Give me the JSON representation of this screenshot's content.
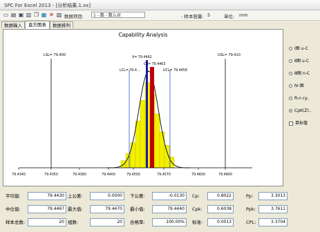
{
  "window": {
    "title": "SPC For Excel 2013 - [分析结果.1.xx]"
  },
  "toolbar": {
    "field1_label": "数据项目:",
    "field1_value": "1 - 数 - 数么对",
    "field2_label": "- 样本容量:",
    "field2_value": "5",
    "field3_label": "单位:",
    "field3_value": "mm"
  },
  "tabs": [
    {
      "label": "数据输入"
    },
    {
      "label": "直方图表"
    },
    {
      "label": "数据排列"
    }
  ],
  "chart": {
    "title": "Capability Analysis",
    "lsl_label": "LSL= 79.400",
    "usl_label": "USL= 79.410",
    "lcl_label": "LCL= 79.4...",
    "ucl_label": "UCL= 79.4458",
    "xbar_label": "X= 79.4462",
    "cl_label": "CL= 79.4463"
  },
  "chart_data": {
    "type": "bar",
    "title": "Capability Analysis",
    "xlabel": "",
    "ylabel": "",
    "x_ticks": [
      "79.4340",
      "79.4350",
      "79.4360",
      "79.4400",
      "79.4500",
      "79.4570",
      "79.4600",
      "79.4800"
    ],
    "histogram": [
      0.08,
      0.16,
      0.28,
      0.52,
      0.75,
      0.95,
      0.82,
      0.6,
      0.4,
      0.25,
      0.12
    ],
    "colors": {
      "bars": "#f3f000",
      "curve": "#000000",
      "mean_line": "#c00000",
      "spec_lines": "#000000"
    }
  },
  "side": {
    "items": [
      {
        "label": "Ⅰ图 u-C",
        "kind": "radio",
        "on": false
      },
      {
        "label": "Ⅱ图 u-C",
        "kind": "radio",
        "on": false
      },
      {
        "label": "Ⅲ图 n-C",
        "kind": "radio",
        "on": false
      },
      {
        "label": "Ⅳ-图",
        "kind": "radio",
        "on": false
      },
      {
        "label": "R-n cy..",
        "kind": "radio",
        "on": false
      },
      {
        "label": "CpK(Z)..",
        "kind": "radio",
        "on": true
      },
      {
        "label": "目标值",
        "kind": "check",
        "on": false
      }
    ]
  },
  "stats": {
    "rows": [
      [
        {
          "label": "平均值:",
          "value": "79.4430"
        },
        {
          "label": "上公差:",
          "value": "0.0000"
        },
        {
          "label": "下公差:",
          "value": "-0.0130"
        },
        {
          "label": "Cp:",
          "value": "0.8022"
        },
        {
          "label": "Pp:",
          "value": "3.3013"
        }
      ],
      [
        {
          "label": "中位值:",
          "value": "79.4467"
        },
        {
          "label": "最大值:",
          "value": "79.4470"
        },
        {
          "label": "最小值:",
          "value": "79.4440"
        },
        {
          "label": "Cpk:",
          "value": "0.6038"
        },
        {
          "label": "Ppk:",
          "value": "3.7611"
        }
      ],
      [
        {
          "label": "样本总数:",
          "value": "20"
        },
        {
          "label": "组数:",
          "value": "20"
        },
        {
          "label": "合格率:",
          "value": "100.00%"
        },
        {
          "label": "标准:",
          "value": "0.0013"
        },
        {
          "label": "CPL:",
          "value": "3.3704"
        }
      ]
    ]
  }
}
